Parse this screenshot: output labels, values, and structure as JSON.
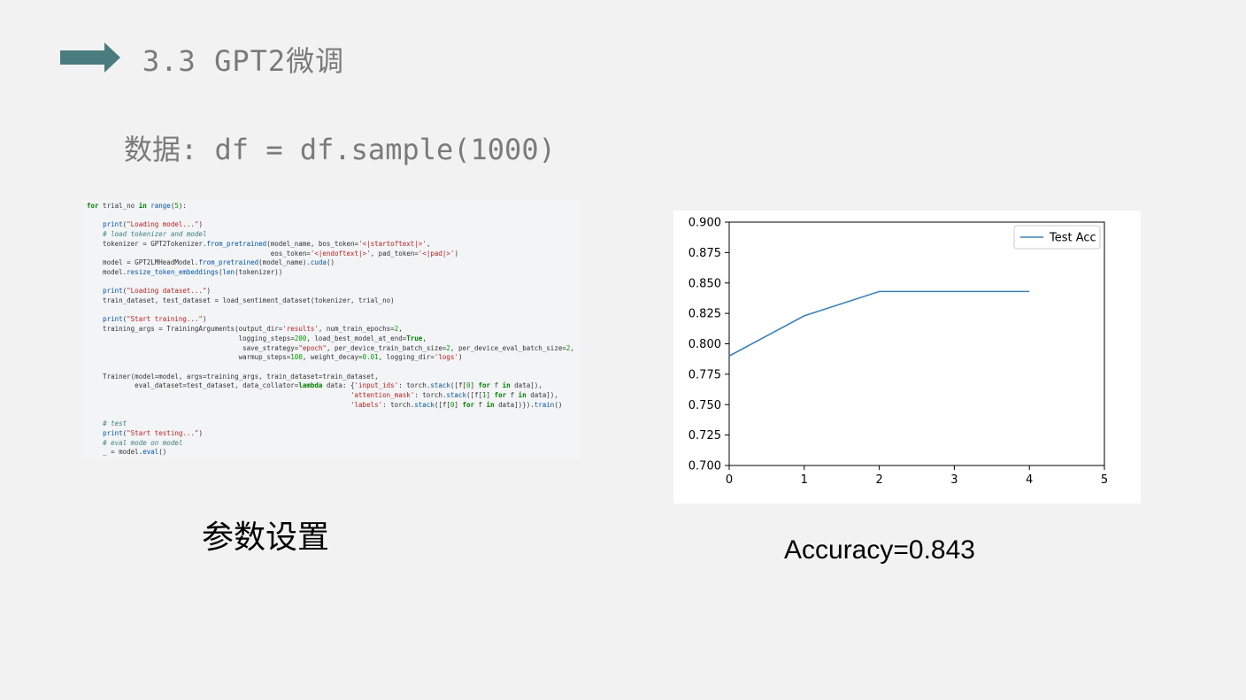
{
  "slide": {
    "section_title": "3.3 GPT2微调",
    "data_line": "数据:  df = df.sample(1000)",
    "params_caption": "参数设置",
    "accuracy_caption": "Accuracy=0.843",
    "arrow_color": "#4a7b7f"
  },
  "code": {
    "lines": [
      "for trial_no in range(5):",
      "",
      "    print(\"Loading model...\")",
      "    # load tokenizer and model",
      "    tokenizer = GPT2Tokenizer.from_pretrained(model_name, bos_token='<|startoftext|>',",
      "                                              eos_token='<|endoftext|>', pad_token='<|pad|>')",
      "    model = GPT2LMHeadModel.from_pretrained(model_name).cuda()",
      "    model.resize_token_embeddings(len(tokenizer))",
      "",
      "    print(\"Loading dataset...\")",
      "    train_dataset, test_dataset = load_sentiment_dataset(tokenizer, trial_no)",
      "",
      "    print(\"Start training...\")",
      "    training_args = TrainingArguments(output_dir='results', num_train_epochs=2,",
      "                                      logging_steps=200, load_best_model_at_end=True,",
      "                                       save_strategy=\"epoch\", per_device_train_batch_size=2, per_device_eval_batch_size=2,",
      "                                      warmup_steps=100, weight_decay=0.01, logging_dir='logs')",
      "",
      "    Trainer(model=model, args=training_args, train_dataset=train_dataset,",
      "            eval_dataset=test_dataset, data_collator=lambda data: {'input_ids': torch.stack([f[0] for f in data]),",
      "                                                                  'attention_mask': torch.stack([f[1] for f in data]),",
      "                                                                  'labels': torch.stack([f[0] for f in data])}).train()",
      "",
      "    # test",
      "    print(\"Start testing...\")",
      "    # eval mode on model",
      "    _ = model.eval()"
    ]
  },
  "chart_data": {
    "type": "line",
    "title": "",
    "xlabel": "",
    "ylabel": "",
    "xlim": [
      0,
      5
    ],
    "ylim": [
      0.7,
      0.9
    ],
    "xticks": [
      "0",
      "1",
      "2",
      "3",
      "4",
      "5"
    ],
    "yticks": [
      "0.700",
      "0.725",
      "0.750",
      "0.775",
      "0.800",
      "0.825",
      "0.850",
      "0.875",
      "0.900"
    ],
    "grid": false,
    "legend_position": "top-right",
    "series": [
      {
        "name": "Test Acc",
        "color": "#3b82b8",
        "x": [
          0,
          1,
          2,
          3,
          4
        ],
        "y": [
          0.79,
          0.823,
          0.843,
          0.843,
          0.843
        ]
      }
    ]
  }
}
